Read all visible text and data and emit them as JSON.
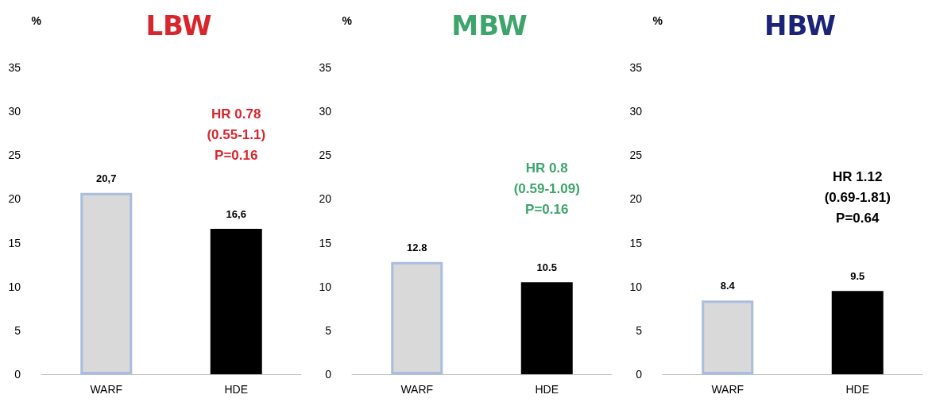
{
  "chart_data": [
    {
      "type": "bar",
      "title": "LBW",
      "ylabel": "%",
      "categories": [
        "WARF",
        "HDE"
      ],
      "values": [
        20.7,
        16.6
      ],
      "colors": [
        "#d9d9d9",
        "#000000"
      ],
      "value_labels": [
        "20,7",
        "16,6"
      ],
      "ylim": [
        0,
        35
      ],
      "yticks": [
        0,
        5,
        10,
        15,
        20,
        25,
        30,
        35
      ],
      "grid": false,
      "annotations": [
        "HR 0.78\n(0.55-1.1)\nP=0.16"
      ]
    },
    {
      "type": "bar",
      "title": "MBW",
      "ylabel": "%",
      "categories": [
        "WARF",
        "HDE"
      ],
      "values": [
        12.8,
        10.5
      ],
      "colors": [
        "#d9d9d9",
        "#000000"
      ],
      "value_labels": [
        "12.8",
        "10.5"
      ],
      "ylim": [
        0,
        35
      ],
      "yticks": [
        0,
        5,
        10,
        15,
        20,
        25,
        30,
        35
      ],
      "grid": false,
      "annotations": [
        "HR 0.8\n(0.59-1.09)\nP=0.16"
      ]
    },
    {
      "type": "bar",
      "title": "HBW",
      "ylabel": "%",
      "categories": [
        "WARF",
        "HDE"
      ],
      "values": [
        8.4,
        9.5
      ],
      "colors": [
        "#d9d9d9",
        "#000000"
      ],
      "value_labels": [
        "8.4",
        "9.5"
      ],
      "ylim": [
        0,
        35
      ],
      "yticks": [
        0,
        5,
        10,
        15,
        20,
        25,
        30,
        35
      ],
      "grid": false,
      "annotations": [
        "HR 1.12\n(0.69-1.81)\nP=0.64"
      ]
    }
  ]
}
